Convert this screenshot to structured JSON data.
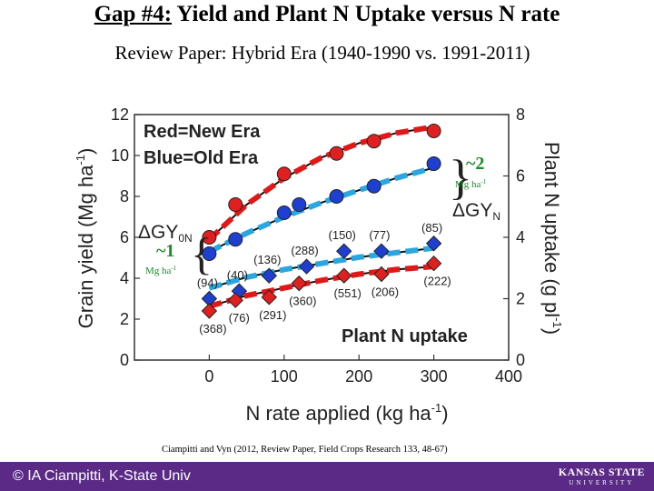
{
  "slide": {
    "title_prefix": "Gap #4:",
    "title_rest": "Yield and Plant N Uptake versus N rate",
    "subtitle": "Review Paper: Hybrid Era (1940-1990 vs. 1991-2011)",
    "citation": "Ciampitti and Vyn (2012, Review Paper, Field Crops Research 133, 48-67)",
    "footer_credit": "© IA Ciampitti, K-State Univ",
    "logo_top": "KANSAS STATE",
    "logo_bottom": "UNIVERSITY",
    "footer_color": "#5a2a86"
  },
  "chart_data": {
    "type": "scatter",
    "xlabel": "N rate applied (kg ha",
    "xlabel_sup": "-1",
    "xlabel_end": ")",
    "ylabel_left": "Grain yield (Mg ha",
    "ylabel_left_sup": "-1",
    "ylabel_left_end": ")",
    "ylabel_right": "Plant N uptake (g pl",
    "ylabel_right_sup": "-1",
    "ylabel_right_end": ")",
    "xlim": [
      -100,
      400
    ],
    "ylim_left": [
      0,
      12
    ],
    "ylim_right": [
      0,
      8
    ],
    "x_ticks": [
      0,
      100,
      200,
      300,
      400
    ],
    "y_left_ticks": [
      0,
      2,
      4,
      6,
      8,
      10,
      12
    ],
    "y_right_ticks": [
      0,
      2,
      4,
      6,
      8
    ],
    "grid": false,
    "legend": {
      "line1": "Red=New Era",
      "line2": "Blue=Old Era",
      "position": "top-left"
    },
    "annotations": {
      "plant_n_uptake": "Plant N uptake",
      "delta_gy": "ΔGY",
      "delta_gy_sub": "0N",
      "delta_gy_n": "ΔGY",
      "delta_gy_n_sub": "N",
      "gap_new": "~2",
      "gap_old": "~1",
      "unit": "Mg ha",
      "unit_sup": "-1"
    },
    "colors": {
      "new_era": "#e02020",
      "old_era": "#1f3fd0",
      "new_era_fit": "#e01818",
      "old_era_fit": "#2aa6e0",
      "fit_core": "#111111"
    },
    "series": [
      {
        "name": "Red=New Era",
        "kind": "grain_yield",
        "axis": "left",
        "marker": "circle",
        "x": [
          0,
          35,
          100,
          170,
          220,
          300
        ],
        "y": [
          6.0,
          7.6,
          9.1,
          10.1,
          10.7,
          11.2
        ]
      },
      {
        "name": "Blue=Old Era",
        "kind": "grain_yield",
        "axis": "left",
        "marker": "circle",
        "x": [
          0,
          35,
          100,
          120,
          170,
          220,
          300
        ],
        "y": [
          5.2,
          5.9,
          7.2,
          7.6,
          8.0,
          8.5,
          9.6
        ]
      },
      {
        "name": "Blue=Old Era",
        "kind": "plant_n_uptake",
        "axis": "right",
        "marker": "diamond",
        "x": [
          0,
          40,
          80,
          130,
          180,
          230,
          300
        ],
        "labels": [
          "(94)",
          "(40)",
          "(136)",
          "(288)",
          "(150)",
          "(77)",
          "(85)"
        ],
        "y": [
          2.0,
          2.25,
          2.75,
          3.05,
          3.55,
          3.55,
          3.8
        ]
      },
      {
        "name": "Red=New Era",
        "kind": "plant_n_uptake",
        "axis": "right",
        "marker": "diamond",
        "x": [
          0,
          35,
          80,
          120,
          180,
          230,
          300
        ],
        "labels": [
          "(368)",
          "(76)",
          "(291)",
          "(360)",
          "(551)",
          "(206)",
          "(222)"
        ],
        "y": [
          1.6,
          1.95,
          2.05,
          2.5,
          2.75,
          2.8,
          3.15
        ]
      }
    ],
    "fit_curves": [
      {
        "era": "new",
        "axis": "left",
        "x": [
          0,
          50,
          100,
          150,
          200,
          250,
          300
        ],
        "y": [
          5.9,
          7.6,
          8.9,
          9.9,
          10.6,
          11.1,
          11.4
        ]
      },
      {
        "era": "old",
        "axis": "left",
        "x": [
          0,
          50,
          100,
          150,
          200,
          250,
          300
        ],
        "y": [
          5.3,
          6.2,
          7.0,
          7.7,
          8.3,
          8.9,
          9.4
        ]
      },
      {
        "era": "old",
        "axis": "right",
        "x": [
          0,
          50,
          100,
          150,
          200,
          250,
          300
        ],
        "y": [
          2.35,
          2.7,
          2.95,
          3.15,
          3.35,
          3.5,
          3.65
        ]
      },
      {
        "era": "new",
        "axis": "right",
        "x": [
          0,
          50,
          100,
          150,
          200,
          250,
          300
        ],
        "y": [
          1.75,
          2.1,
          2.35,
          2.6,
          2.8,
          2.95,
          3.05
        ]
      }
    ]
  }
}
